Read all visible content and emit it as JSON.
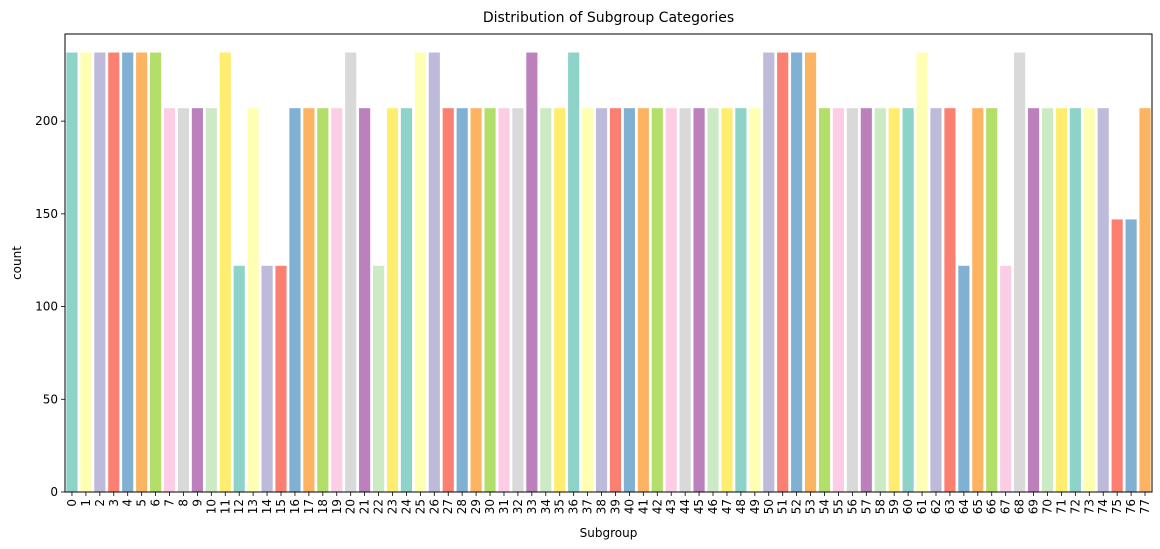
{
  "chart_data": {
    "type": "bar",
    "title": "Distribution of Subgroup Categories",
    "xlabel": "Subgroup",
    "ylabel": "count",
    "ylim": [
      0,
      247
    ],
    "yticks": [
      0,
      50,
      100,
      150,
      200
    ],
    "categories": [
      "0",
      "1",
      "2",
      "3",
      "4",
      "5",
      "6",
      "7",
      "8",
      "9",
      "10",
      "11",
      "12",
      "13",
      "14",
      "15",
      "16",
      "17",
      "18",
      "19",
      "20",
      "21",
      "22",
      "23",
      "24",
      "25",
      "26",
      "27",
      "28",
      "29",
      "30",
      "31",
      "32",
      "33",
      "34",
      "35",
      "36",
      "37",
      "38",
      "39",
      "40",
      "41",
      "42",
      "43",
      "44",
      "45",
      "46",
      "47",
      "48",
      "49",
      "50",
      "51",
      "52",
      "53",
      "54",
      "55",
      "56",
      "57",
      "58",
      "59",
      "60",
      "61",
      "62",
      "63",
      "64",
      "65",
      "66",
      "67",
      "68",
      "69",
      "70",
      "71",
      "72",
      "73",
      "74",
      "75",
      "76",
      "77"
    ],
    "values": [
      237,
      237,
      237,
      237,
      237,
      237,
      237,
      207,
      207,
      207,
      207,
      237,
      122,
      207,
      122,
      122,
      207,
      207,
      207,
      207,
      237,
      207,
      122,
      207,
      207,
      237,
      237,
      207,
      207,
      207,
      207,
      207,
      207,
      237,
      207,
      207,
      237,
      207,
      207,
      207,
      207,
      207,
      207,
      207,
      207,
      207,
      207,
      207,
      207,
      207,
      237,
      237,
      237,
      237,
      207,
      207,
      207,
      207,
      207,
      207,
      207,
      237,
      207,
      207,
      122,
      207,
      207,
      122,
      237,
      207,
      207,
      207,
      207,
      207,
      207,
      147,
      147,
      207
    ],
    "palette": [
      "#8dd3c7",
      "#ffffb3",
      "#bebada",
      "#fb8072",
      "#80b1d3",
      "#fdb462",
      "#b3de69",
      "#fccde5",
      "#d9d9d9",
      "#bc80bd",
      "#ccebc5",
      "#ffed6f"
    ],
    "grid": false,
    "legend": "none"
  }
}
